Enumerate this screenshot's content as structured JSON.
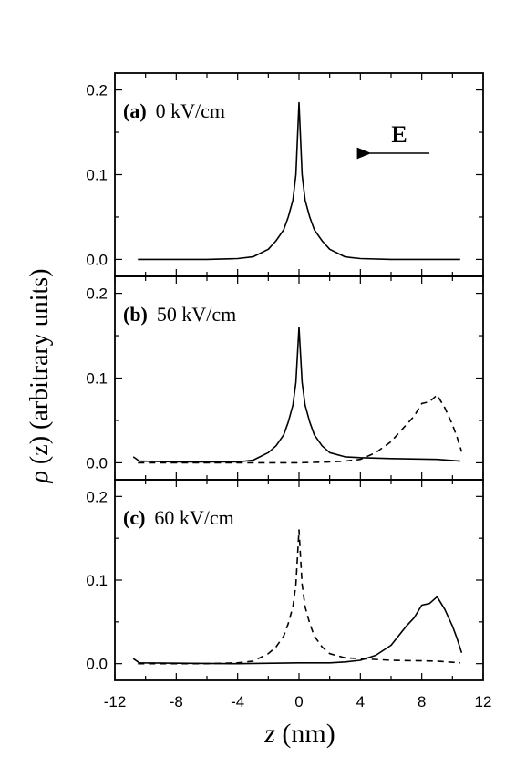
{
  "chart_data": {
    "type": "line",
    "xlabel": {
      "symbol": "z",
      "unit": " (nm)"
    },
    "ylabel": {
      "symbol": "ρ",
      "rest": " (z) (arbitrary units)"
    },
    "xlim": [
      -12,
      12
    ],
    "x_ticks": [
      -12,
      -8,
      -4,
      0,
      4,
      8,
      12
    ],
    "ylim": [
      -0.02,
      0.22
    ],
    "y_ticks": [
      "0.0",
      "0.1",
      "0.2"
    ],
    "annotation": {
      "label": "E",
      "direction": "left",
      "panel": 0
    },
    "panels": [
      {
        "letter": "(a)",
        "field": "0 kV/cm",
        "series": [
          {
            "style": "solid",
            "points": [
              [
                -10.5,
                0.0
              ],
              [
                -6,
                0.0
              ],
              [
                -4,
                0.001
              ],
              [
                -3,
                0.003
              ],
              [
                -2,
                0.012
              ],
              [
                -1.5,
                0.022
              ],
              [
                -1,
                0.035
              ],
              [
                -0.7,
                0.05
              ],
              [
                -0.4,
                0.07
              ],
              [
                -0.2,
                0.1
              ],
              [
                0,
                0.185
              ],
              [
                0.2,
                0.1
              ],
              [
                0.4,
                0.07
              ],
              [
                0.7,
                0.05
              ],
              [
                1,
                0.035
              ],
              [
                1.5,
                0.022
              ],
              [
                2,
                0.012
              ],
              [
                3,
                0.003
              ],
              [
                4,
                0.001
              ],
              [
                6,
                0.0
              ],
              [
                10.5,
                0.0
              ]
            ]
          }
        ]
      },
      {
        "letter": "(b)",
        "field": "50 kV/cm",
        "series": [
          {
            "style": "solid",
            "points": [
              [
                -10.8,
                0.007
              ],
              [
                -10.4,
                0.002
              ],
              [
                -8,
                0.001
              ],
              [
                -4,
                0.001
              ],
              [
                -3,
                0.003
              ],
              [
                -2,
                0.012
              ],
              [
                -1.5,
                0.02
              ],
              [
                -1,
                0.033
              ],
              [
                -0.7,
                0.048
              ],
              [
                -0.4,
                0.068
              ],
              [
                -0.2,
                0.095
              ],
              [
                0,
                0.16
              ],
              [
                0.2,
                0.095
              ],
              [
                0.4,
                0.068
              ],
              [
                0.7,
                0.048
              ],
              [
                1,
                0.033
              ],
              [
                1.5,
                0.02
              ],
              [
                2,
                0.012
              ],
              [
                3,
                0.007
              ],
              [
                4,
                0.006
              ],
              [
                6,
                0.005
              ],
              [
                9,
                0.004
              ],
              [
                10.5,
                0.002
              ]
            ]
          },
          {
            "style": "dashed",
            "points": [
              [
                -10.5,
                0.0
              ],
              [
                -4,
                0.0
              ],
              [
                0,
                0.0
              ],
              [
                2,
                0.001
              ],
              [
                3,
                0.002
              ],
              [
                4,
                0.004
              ],
              [
                5,
                0.012
              ],
              [
                6,
                0.025
              ],
              [
                7,
                0.045
              ],
              [
                7.5,
                0.055
              ],
              [
                8,
                0.07
              ],
              [
                8.5,
                0.072
              ],
              [
                9,
                0.08
              ],
              [
                9.5,
                0.065
              ],
              [
                10,
                0.045
              ],
              [
                10.3,
                0.03
              ],
              [
                10.6,
                0.013
              ]
            ]
          }
        ]
      },
      {
        "letter": "(c)",
        "field": "60 kV/cm",
        "series": [
          {
            "style": "solid",
            "points": [
              [
                -10.8,
                0.006
              ],
              [
                -10.4,
                0.001
              ],
              [
                -4,
                0.0
              ],
              [
                0,
                0.001
              ],
              [
                2,
                0.001
              ],
              [
                3,
                0.002
              ],
              [
                4,
                0.004
              ],
              [
                5,
                0.01
              ],
              [
                6,
                0.022
              ],
              [
                7,
                0.045
              ],
              [
                7.5,
                0.055
              ],
              [
                8,
                0.07
              ],
              [
                8.5,
                0.072
              ],
              [
                9,
                0.08
              ],
              [
                9.5,
                0.065
              ],
              [
                10,
                0.045
              ],
              [
                10.3,
                0.03
              ],
              [
                10.6,
                0.013
              ]
            ]
          },
          {
            "style": "dashed",
            "points": [
              [
                -10.5,
                0.0
              ],
              [
                -6,
                0.0
              ],
              [
                -4,
                0.001
              ],
              [
                -3,
                0.003
              ],
              [
                -2,
                0.012
              ],
              [
                -1.5,
                0.02
              ],
              [
                -1,
                0.033
              ],
              [
                -0.7,
                0.048
              ],
              [
                -0.4,
                0.068
              ],
              [
                -0.2,
                0.095
              ],
              [
                0,
                0.16
              ],
              [
                0.2,
                0.095
              ],
              [
                0.4,
                0.068
              ],
              [
                0.7,
                0.048
              ],
              [
                1,
                0.033
              ],
              [
                1.5,
                0.02
              ],
              [
                2,
                0.012
              ],
              [
                3,
                0.007
              ],
              [
                4,
                0.006
              ],
              [
                6,
                0.004
              ],
              [
                9,
                0.003
              ],
              [
                10.5,
                0.001
              ]
            ]
          }
        ]
      }
    ]
  }
}
